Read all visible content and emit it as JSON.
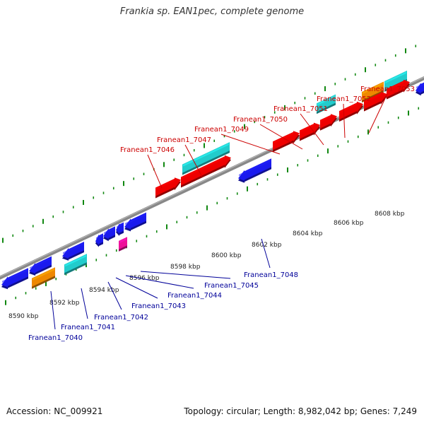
{
  "title": "Frankia sp. EAN1pec, complete genome",
  "footer": {
    "accession": "Accession: NC_009921",
    "summary": "Topology: circular; Length: 8,982,042 bp; Genes: 7,249"
  },
  "colors": {
    "forward_strand": "#ee0000",
    "reverse_strand": "#1a1aee",
    "rna_cyan": "#22cccc",
    "orange": "#ee8800",
    "magenta": "#ee1199",
    "axis": "#888888",
    "tick": "#118811",
    "top_label": "#cc0000",
    "bottom_label": "#000099"
  },
  "scale_ticks": [
    {
      "label": "8590 kbp",
      "kbp": 8590
    },
    {
      "label": "8592 kbp",
      "kbp": 8592
    },
    {
      "label": "8594 kbp",
      "kbp": 8594
    },
    {
      "label": "8596 kbp",
      "kbp": 8596
    },
    {
      "label": "8598 kbp",
      "kbp": 8598
    },
    {
      "label": "8600 kbp",
      "kbp": 8600
    },
    {
      "label": "8602 kbp",
      "kbp": 8602
    },
    {
      "label": "8604 kbp",
      "kbp": 8604
    },
    {
      "label": "8606 kbp",
      "kbp": 8606
    },
    {
      "label": "8608 kbp",
      "kbp": 8608
    }
  ],
  "top_labels": [
    {
      "text": "Franean1_7046"
    },
    {
      "text": "Franean1_7047"
    },
    {
      "text": "Franean1_7049"
    },
    {
      "text": "Franean1_7050"
    },
    {
      "text": "Franean1_7051"
    },
    {
      "text": "Franean1_7052"
    },
    {
      "text": "Franean1_7053"
    }
  ],
  "bottom_labels": [
    {
      "text": "Franean1_7040"
    },
    {
      "text": "Franean1_7041"
    },
    {
      "text": "Franean1_7042"
    },
    {
      "text": "Franean1_7043"
    },
    {
      "text": "Franean1_7044"
    },
    {
      "text": "Franean1_7045"
    },
    {
      "text": "Franean1_7048"
    }
  ]
}
